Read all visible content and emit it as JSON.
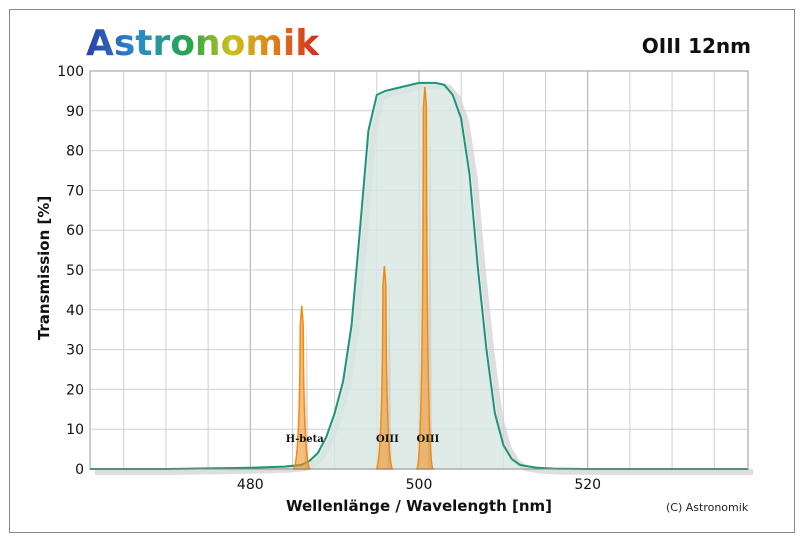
{
  "header": {
    "logo_text": "Astronomik",
    "filter_name": "OIII 12nm"
  },
  "copyright": "(C) Astronomik",
  "colors": {
    "transmission_line": "#1f9478",
    "transmission_fill": "#d6e6e1",
    "emission_line": "#f08a12",
    "grid": "#cfcfcf",
    "grid_major": "#aaaaaa"
  },
  "chart_data": {
    "type": "area",
    "xlabel": "Wellenlänge / Wavelength [nm]",
    "ylabel": "Transmission [%]",
    "xlim": [
      461,
      539
    ],
    "ylim": [
      0,
      100
    ],
    "x_ticks": [
      480,
      500,
      520
    ],
    "y_ticks": [
      0,
      10,
      20,
      30,
      40,
      50,
      60,
      70,
      80,
      90,
      100
    ],
    "grid": true,
    "series": [
      {
        "name": "",
        "style": "filled-line",
        "x": [
          461,
          470,
          480,
          484,
          486,
          487,
          488,
          489,
          490,
          491,
          492,
          493,
          494,
          495,
          496,
          497,
          498,
          499,
          500,
          501,
          502,
          503,
          504,
          505,
          506,
          507,
          508,
          509,
          510,
          511,
          512,
          514,
          516,
          520,
          530,
          539
        ],
        "y": [
          0,
          0,
          0.3,
          0.6,
          1,
          2,
          4,
          8,
          14,
          22,
          36,
          60,
          85,
          94,
          95,
          95.5,
          96,
          96.5,
          97,
          97,
          97,
          96.5,
          94,
          88,
          74,
          50,
          30,
          14,
          6,
          2.5,
          1,
          0.3,
          0.1,
          0,
          0,
          0
        ]
      }
    ],
    "emission_lines": [
      {
        "label": "H-beta",
        "wavelength": 486.1,
        "peak": 41
      },
      {
        "label": "OIII",
        "wavelength": 495.9,
        "peak": 51
      },
      {
        "label": "OIII",
        "wavelength": 500.7,
        "peak": 96
      }
    ]
  }
}
